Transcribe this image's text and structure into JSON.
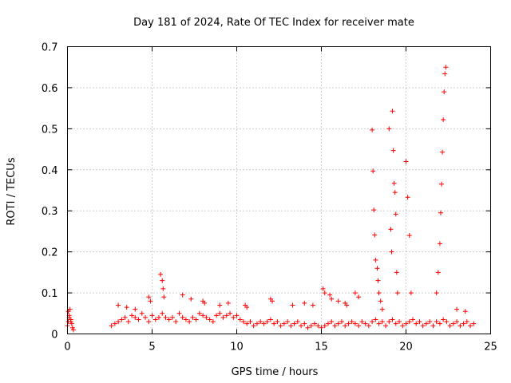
{
  "chart_data": {
    "type": "scatter",
    "title": "Day 181 of 2024, Rate Of TEC Index for receiver mate",
    "xlabel": "GPS time / hours",
    "ylabel": "ROTI / TECUs",
    "xlim": [
      0,
      25
    ],
    "ylim": [
      0,
      0.7
    ],
    "xticks": [
      0,
      5,
      10,
      15,
      20,
      25
    ],
    "yticks": [
      0,
      0.1,
      0.2,
      0.3,
      0.4,
      0.5,
      0.6,
      0.7
    ],
    "xtick_labels": [
      "0",
      "5",
      "10",
      "15",
      "20",
      "25"
    ],
    "ytick_labels": [
      "0",
      "0.1",
      "0.2",
      "0.3",
      "0.4",
      "0.5",
      "0.6",
      "0.7"
    ],
    "grid": true,
    "marker": "+",
    "series_color": "#ff0000",
    "grid_color": "#a0a0a0",
    "series": [
      {
        "name": "ROTI",
        "x": [
          0.0,
          0.05,
          0.1,
          0.15,
          0.2,
          0.25,
          0.3,
          0.35,
          0.05,
          0.1,
          0.2,
          2.6,
          2.8,
          3.0,
          3.2,
          3.4,
          3.6,
          3.8,
          4.0,
          4.2,
          4.4,
          4.6,
          4.8,
          5.0,
          5.2,
          5.4,
          5.6,
          5.8,
          6.0,
          6.2,
          6.4,
          6.6,
          6.8,
          7.0,
          7.2,
          7.4,
          7.6,
          7.8,
          8.0,
          8.2,
          8.4,
          8.6,
          8.8,
          9.0,
          9.2,
          9.4,
          9.6,
          9.8,
          10.0,
          10.2,
          10.4,
          10.6,
          10.8,
          11.0,
          11.2,
          11.4,
          11.6,
          11.8,
          12.0,
          12.2,
          12.4,
          12.6,
          12.8,
          13.0,
          13.2,
          13.4,
          13.6,
          13.8,
          14.0,
          14.2,
          14.4,
          14.6,
          14.8,
          15.0,
          15.2,
          15.4,
          15.6,
          15.8,
          16.0,
          16.2,
          16.4,
          16.6,
          16.8,
          17.0,
          17.2,
          17.4,
          17.6,
          17.8,
          18.0,
          18.2,
          18.4,
          18.6,
          18.8,
          19.0,
          19.2,
          19.4,
          19.6,
          19.8,
          20.0,
          20.2,
          20.4,
          20.6,
          20.8,
          21.0,
          21.2,
          21.4,
          21.6,
          21.8,
          22.0,
          22.2,
          22.4,
          22.6,
          22.8,
          23.0,
          23.2,
          23.4,
          23.6,
          23.8,
          24.0,
          3.0,
          3.5,
          4.0,
          4.8,
          4.9,
          5.5,
          5.6,
          5.65,
          5.7,
          6.8,
          7.3,
          8.0,
          8.1,
          9.0,
          9.5,
          10.5,
          10.6,
          12.0,
          12.1,
          13.3,
          14.0,
          14.5,
          15.1,
          15.2,
          15.5,
          15.6,
          16.0,
          16.4,
          16.5,
          17.0,
          17.2,
          18.0,
          18.05,
          18.1,
          18.15,
          18.2,
          18.3,
          18.35,
          18.4,
          18.5,
          18.6,
          19.0,
          19.1,
          19.15,
          19.2,
          19.25,
          19.3,
          19.35,
          19.4,
          19.45,
          19.5,
          20.0,
          20.1,
          20.2,
          20.3,
          21.8,
          21.9,
          22.0,
          22.05,
          22.1,
          22.15,
          22.2,
          22.25,
          22.3,
          22.35,
          23.0,
          23.5
        ],
        "y": [
          0.02,
          0.03,
          0.045,
          0.06,
          0.035,
          0.025,
          0.015,
          0.01,
          0.055,
          0.04,
          0.03,
          0.02,
          0.025,
          0.03,
          0.035,
          0.04,
          0.03,
          0.045,
          0.04,
          0.035,
          0.05,
          0.04,
          0.03,
          0.045,
          0.035,
          0.04,
          0.05,
          0.04,
          0.035,
          0.04,
          0.03,
          0.05,
          0.04,
          0.035,
          0.03,
          0.04,
          0.035,
          0.05,
          0.045,
          0.04,
          0.035,
          0.03,
          0.045,
          0.05,
          0.04,
          0.045,
          0.05,
          0.04,
          0.045,
          0.035,
          0.03,
          0.025,
          0.03,
          0.02,
          0.025,
          0.03,
          0.025,
          0.03,
          0.035,
          0.025,
          0.03,
          0.02,
          0.025,
          0.03,
          0.02,
          0.025,
          0.03,
          0.02,
          0.025,
          0.015,
          0.02,
          0.025,
          0.02,
          0.015,
          0.02,
          0.025,
          0.03,
          0.02,
          0.025,
          0.03,
          0.02,
          0.025,
          0.03,
          0.025,
          0.02,
          0.03,
          0.025,
          0.02,
          0.03,
          0.035,
          0.025,
          0.03,
          0.02,
          0.03,
          0.035,
          0.025,
          0.03,
          0.02,
          0.025,
          0.03,
          0.035,
          0.025,
          0.03,
          0.02,
          0.025,
          0.03,
          0.02,
          0.03,
          0.025,
          0.035,
          0.03,
          0.02,
          0.025,
          0.03,
          0.02,
          0.025,
          0.03,
          0.02,
          0.025,
          0.07,
          0.065,
          0.06,
          0.09,
          0.08,
          0.145,
          0.13,
          0.11,
          0.09,
          0.095,
          0.085,
          0.08,
          0.075,
          0.07,
          0.075,
          0.07,
          0.065,
          0.085,
          0.08,
          0.07,
          0.075,
          0.07,
          0.11,
          0.1,
          0.095,
          0.085,
          0.08,
          0.075,
          0.07,
          0.1,
          0.09,
          0.497,
          0.397,
          0.302,
          0.241,
          0.18,
          0.16,
          0.13,
          0.1,
          0.08,
          0.06,
          0.5,
          0.255,
          0.2,
          0.543,
          0.447,
          0.367,
          0.345,
          0.292,
          0.15,
          0.1,
          0.42,
          0.333,
          0.24,
          0.1,
          0.1,
          0.15,
          0.22,
          0.295,
          0.365,
          0.443,
          0.522,
          0.59,
          0.634,
          0.65,
          0.06,
          0.055
        ]
      }
    ]
  }
}
